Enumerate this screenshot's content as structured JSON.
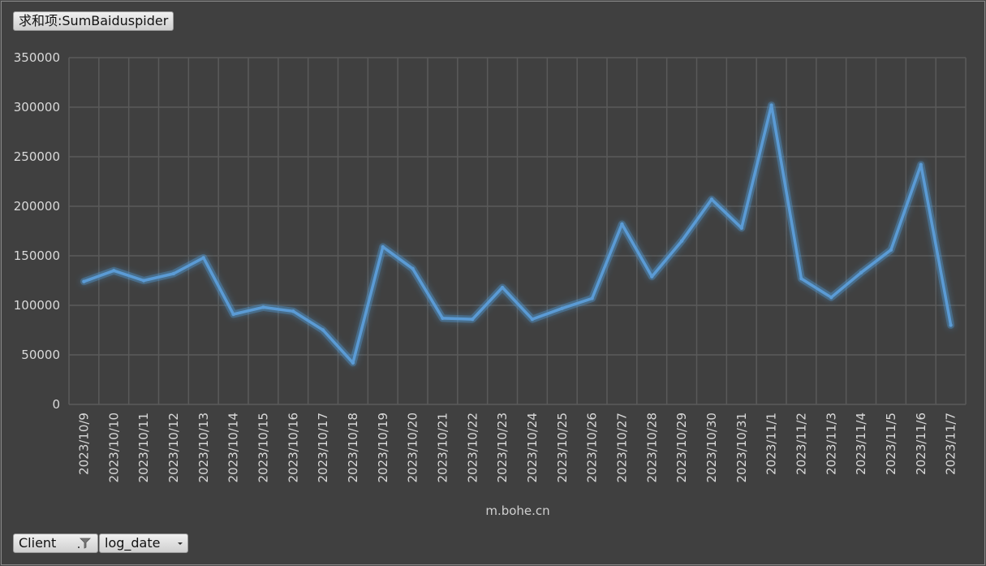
{
  "header": {
    "field_title": "求和项:SumBaiduspider"
  },
  "footer": {
    "client_label": "Client",
    "client_icon": "filter-icon",
    "log_date_label": "log_date",
    "log_date_icon": "dropdown-arrow-icon"
  },
  "colors": {
    "background": "#404040",
    "grid": "#5a5a5a",
    "line": "#5b9bd5",
    "glow": "#4f9ad8"
  },
  "chart_data": {
    "type": "line",
    "title": "",
    "xlabel": "m.bohe.cn",
    "ylabel": "",
    "ylim": [
      0,
      350000
    ],
    "yticks": [
      0,
      50000,
      100000,
      150000,
      200000,
      250000,
      300000,
      350000
    ],
    "grid": true,
    "categories": [
      "2023/10/9",
      "2023/10/10",
      "2023/10/11",
      "2023/10/12",
      "2023/10/13",
      "2023/10/14",
      "2023/10/15",
      "2023/10/16",
      "2023/10/17",
      "2023/10/18",
      "2023/10/19",
      "2023/10/20",
      "2023/10/21",
      "2023/10/22",
      "2023/10/23",
      "2023/10/24",
      "2023/10/25",
      "2023/10/26",
      "2023/10/27",
      "2023/10/28",
      "2023/10/29",
      "2023/10/30",
      "2023/10/31",
      "2023/11/1",
      "2023/11/2",
      "2023/11/3",
      "2023/11/4",
      "2023/11/5",
      "2023/11/6",
      "2023/11/7"
    ],
    "series": [
      {
        "values": [
          124000,
          135000,
          125000,
          132000,
          148000,
          91000,
          98000,
          94000,
          75000,
          42000,
          159000,
          137000,
          87000,
          86000,
          118000,
          86000,
          97000,
          107000,
          182000,
          129000,
          165000,
          207000,
          178000,
          302000,
          127000,
          108000,
          133000,
          156000,
          242000,
          80000
        ]
      }
    ]
  }
}
